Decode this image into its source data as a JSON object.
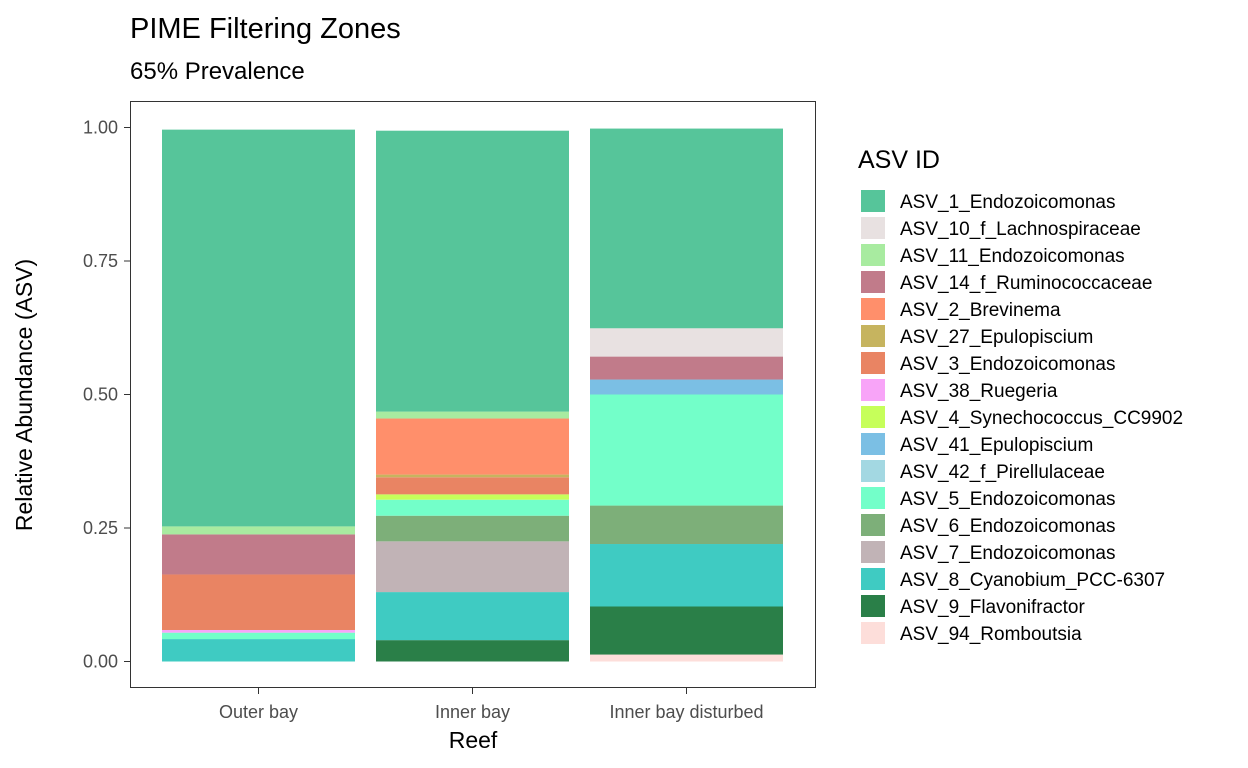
{
  "chart_data": {
    "type": "bar",
    "stacked": true,
    "title": "PIME Filtering Zones",
    "subtitle": "65% Prevalence",
    "xlabel": "Reef",
    "ylabel": "Relative Abundance (ASV)",
    "ylim": [
      0,
      1.0
    ],
    "yticks": [
      "0.00",
      "0.25",
      "0.50",
      "0.75",
      "1.00"
    ],
    "grid": false,
    "legend_title": "ASV ID",
    "legend_position": "right",
    "categories": [
      "Outer bay",
      "Inner bay",
      "Inner bay disturbed"
    ],
    "series": [
      {
        "name": "ASV_1_Endozoicomonas",
        "color": "#56C59A",
        "values": [
          0.743,
          0.526,
          0.374
        ]
      },
      {
        "name": "ASV_10_f_Lachnospiraceae",
        "color": "#E8E1E1",
        "values": [
          0,
          0,
          0.053
        ]
      },
      {
        "name": "ASV_11_Endozoicomonas",
        "color": "#A8EBA0",
        "values": [
          0.015,
          0.013,
          0
        ]
      },
      {
        "name": "ASV_14_f_Ruminococcaceae",
        "color": "#C17B8A",
        "values": [
          0.075,
          0,
          0.043
        ]
      },
      {
        "name": "ASV_2_Brevinema",
        "color": "#FF8F6B",
        "values": [
          0,
          0.105,
          0
        ]
      },
      {
        "name": "ASV_27_Epulopiscium",
        "color": "#C6B45F",
        "values": [
          0,
          0.005,
          0
        ]
      },
      {
        "name": "ASV_3_Endozoicomonas",
        "color": "#E98463",
        "values": [
          0.104,
          0.032,
          0
        ]
      },
      {
        "name": "ASV_38_Ruegeria",
        "color": "#F8A4F8",
        "values": [
          0.005,
          0,
          0
        ]
      },
      {
        "name": "ASV_4_Synechococcus_CC9902",
        "color": "#C6FF5A",
        "values": [
          0,
          0.01,
          0
        ]
      },
      {
        "name": "ASV_41_Epulopiscium",
        "color": "#7BBFE4",
        "values": [
          0,
          0,
          0.028
        ]
      },
      {
        "name": "ASV_42_f_Pirellulaceae",
        "color": "#A3D8E2",
        "values": [
          0,
          0,
          0
        ]
      },
      {
        "name": "ASV_5_Endozoicomonas",
        "color": "#73FFC9",
        "values": [
          0.012,
          0.03,
          0.208
        ]
      },
      {
        "name": "ASV_6_Endozoicomonas",
        "color": "#7DAF79",
        "values": [
          0,
          0.048,
          0.072
        ]
      },
      {
        "name": "ASV_7_Endozoicomonas",
        "color": "#C1B3B6",
        "values": [
          0,
          0.095,
          0
        ]
      },
      {
        "name": "ASV_8_Cyanobium_PCC-6307",
        "color": "#3FCBC2",
        "values": [
          0.042,
          0.09,
          0.117
        ]
      },
      {
        "name": "ASV_9_Flavonifractor",
        "color": "#2A7F48",
        "values": [
          0,
          0.04,
          0.09
        ]
      },
      {
        "name": "ASV_94_Romboutsia",
        "color": "#FDDEDA",
        "values": [
          0,
          0,
          0.013
        ]
      }
    ]
  }
}
